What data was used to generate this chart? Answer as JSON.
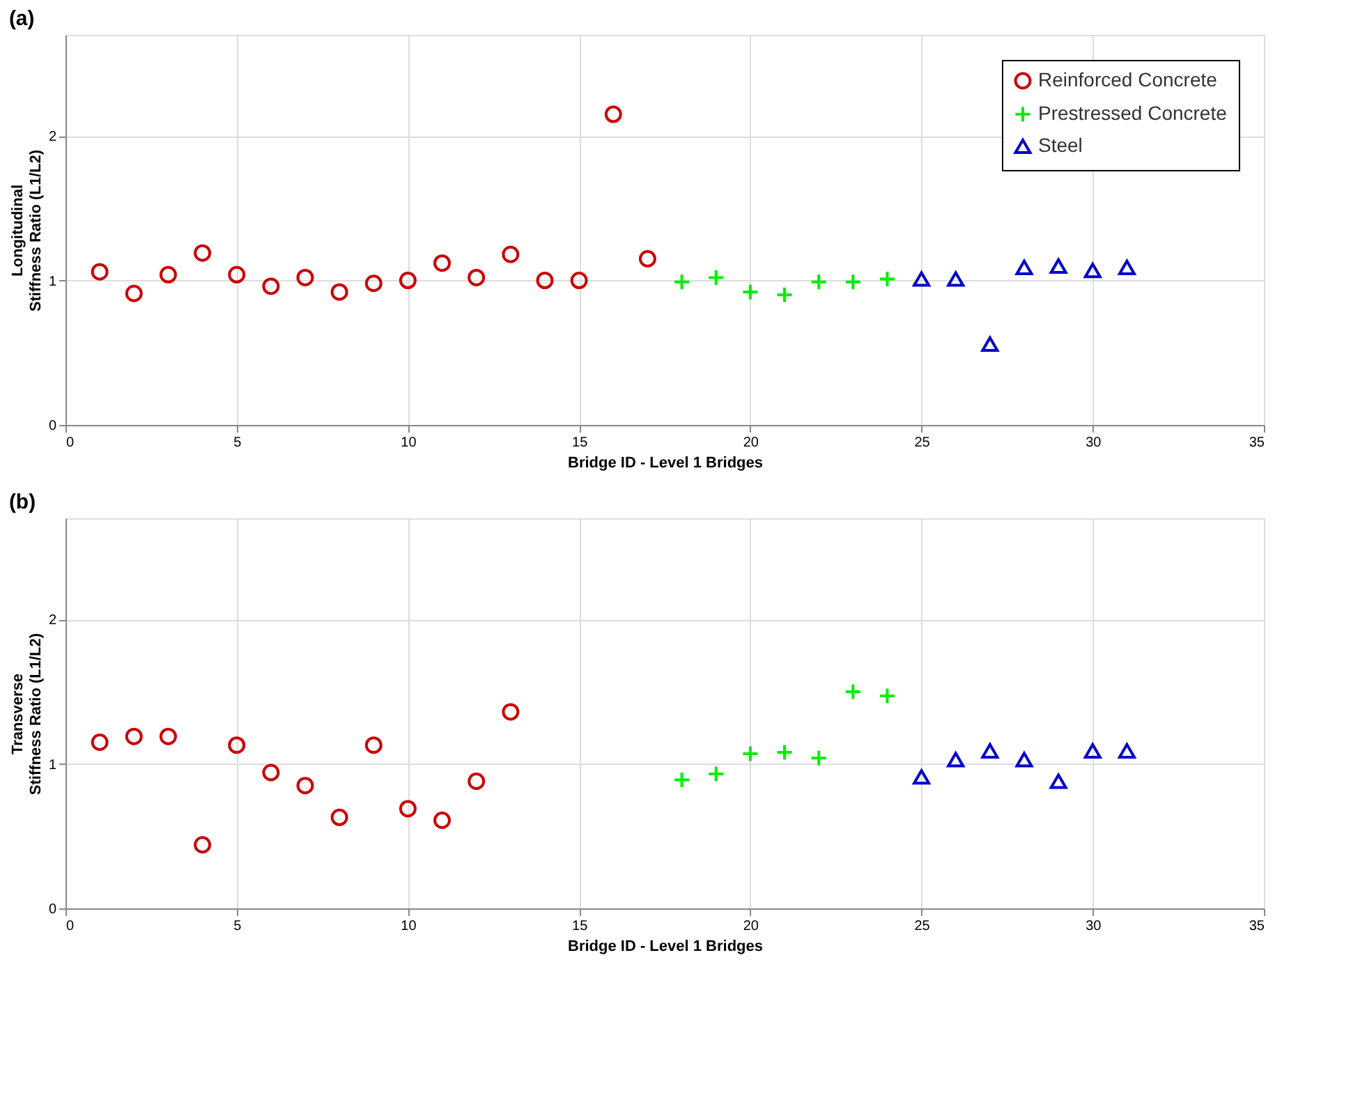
{
  "chart_data": [
    {
      "type": "scatter",
      "title": "(a)",
      "xlabel": "Bridge ID - Level 1 Bridges",
      "ylabel": "Longitudinal\nStiffness Ratio (L1/L2)",
      "xlim": [
        0,
        35
      ],
      "xticks": [
        0,
        5,
        10,
        15,
        20,
        25,
        30,
        35
      ],
      "ylim": [
        0,
        2.7
      ],
      "yticks": [
        0,
        1,
        2
      ],
      "grid": true,
      "legend": "top right",
      "series": [
        {
          "name": "Reinforced Concrete",
          "color": "#cc0000",
          "marker": "circle",
          "x": [
            1,
            2,
            3,
            4,
            5,
            6,
            7,
            8,
            9,
            10,
            11,
            12,
            13,
            14,
            15,
            16,
            17
          ],
          "values": [
            1.06,
            0.91,
            1.04,
            1.19,
            1.04,
            0.96,
            1.02,
            0.92,
            0.98,
            1.0,
            1.12,
            1.02,
            1.18,
            1.0,
            1.0,
            2.15,
            1.15
          ]
        },
        {
          "name": "Prestressed Concrete",
          "color": "#00ee00",
          "marker": "cross",
          "x": [
            18,
            19,
            20,
            21,
            22,
            23,
            24
          ],
          "values": [
            0.99,
            1.02,
            0.92,
            0.9,
            0.99,
            0.99,
            1.01
          ]
        },
        {
          "name": "Steel",
          "color": "#0000cc",
          "marker": "triangle",
          "x": [
            25,
            26,
            27,
            28,
            29,
            30,
            31
          ],
          "values": [
            1.01,
            1.01,
            0.56,
            1.09,
            1.1,
            1.07,
            1.09
          ]
        }
      ]
    },
    {
      "type": "scatter",
      "title": "(b)",
      "xlabel": "Bridge ID - Level 1 Bridges",
      "ylabel": "Transverse\nStiffness Ratio (L1/L2)",
      "xlim": [
        0,
        35
      ],
      "xticks": [
        0,
        5,
        10,
        15,
        20,
        25,
        30,
        35
      ],
      "ylim": [
        0,
        2.7
      ],
      "yticks": [
        0,
        1,
        2
      ],
      "grid": true,
      "legend": "top right",
      "series": [
        {
          "name": "Reinforced Concrete",
          "color": "#cc0000",
          "marker": "circle",
          "x": [
            1,
            2,
            3,
            4,
            5,
            6,
            7,
            8,
            9,
            10,
            11,
            12,
            13
          ],
          "values": [
            1.15,
            1.19,
            1.19,
            0.44,
            1.13,
            0.94,
            0.85,
            0.63,
            1.13,
            0.69,
            0.61,
            0.88,
            1.36
          ]
        },
        {
          "name": "Prestressed Concrete",
          "color": "#00ee00",
          "marker": "cross",
          "x": [
            18,
            19,
            20,
            21,
            22,
            23,
            24
          ],
          "values": [
            0.89,
            0.93,
            1.07,
            1.08,
            1.04,
            1.5,
            1.47
          ]
        },
        {
          "name": "Steel",
          "color": "#0000cc",
          "marker": "triangle",
          "x": [
            25,
            26,
            27,
            28,
            29,
            30,
            31
          ],
          "values": [
            0.91,
            1.03,
            1.09,
            1.03,
            0.88,
            1.09,
            1.09
          ]
        }
      ]
    }
  ]
}
